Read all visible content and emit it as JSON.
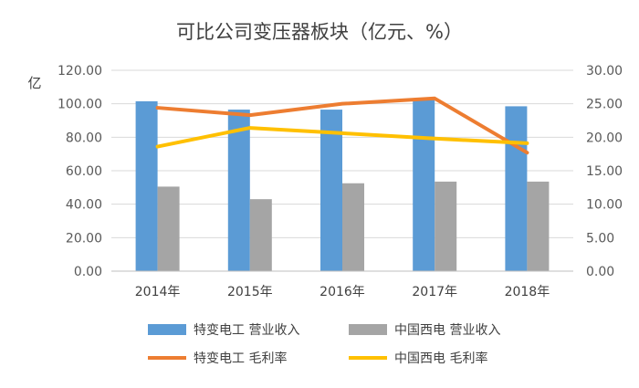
{
  "chart_data": {
    "type": "bar",
    "title": "可比公司变压器板块（亿元、%）",
    "ylabel": "亿",
    "y2label": "",
    "categories": [
      "2014年",
      "2015年",
      "2016年",
      "2017年",
      "2018年"
    ],
    "ylim": [
      0,
      120
    ],
    "y_ticks": [
      "0.00",
      "20.00",
      "40.00",
      "60.00",
      "80.00",
      "100.00",
      "120.00"
    ],
    "y2lim": [
      0,
      30
    ],
    "y2_ticks": [
      "0.00",
      "5.00",
      "10.00",
      "15.00",
      "20.00",
      "25.00",
      "30.00"
    ],
    "grid": true,
    "legend_position": "bottom",
    "series": [
      {
        "name": "特变电工 营业收入",
        "type": "bar",
        "axis": "left",
        "color": "#5b9bd5",
        "values": [
          101.5,
          96.5,
          96.5,
          102.5,
          98.5
        ]
      },
      {
        "name": "中国西电 营业收入",
        "type": "bar",
        "axis": "left",
        "color": "#a5a5a5",
        "values": [
          50.5,
          43.0,
          52.5,
          53.5,
          53.5
        ]
      },
      {
        "name": "特变电工 毛利率",
        "type": "line",
        "axis": "right",
        "color": "#ed7d31",
        "values": [
          24.4,
          23.3,
          25.0,
          25.8,
          17.7
        ]
      },
      {
        "name": "中国西电 毛利率",
        "type": "line",
        "axis": "right",
        "color": "#ffc000",
        "values": [
          18.6,
          21.4,
          20.6,
          19.8,
          19.1
        ]
      }
    ]
  }
}
